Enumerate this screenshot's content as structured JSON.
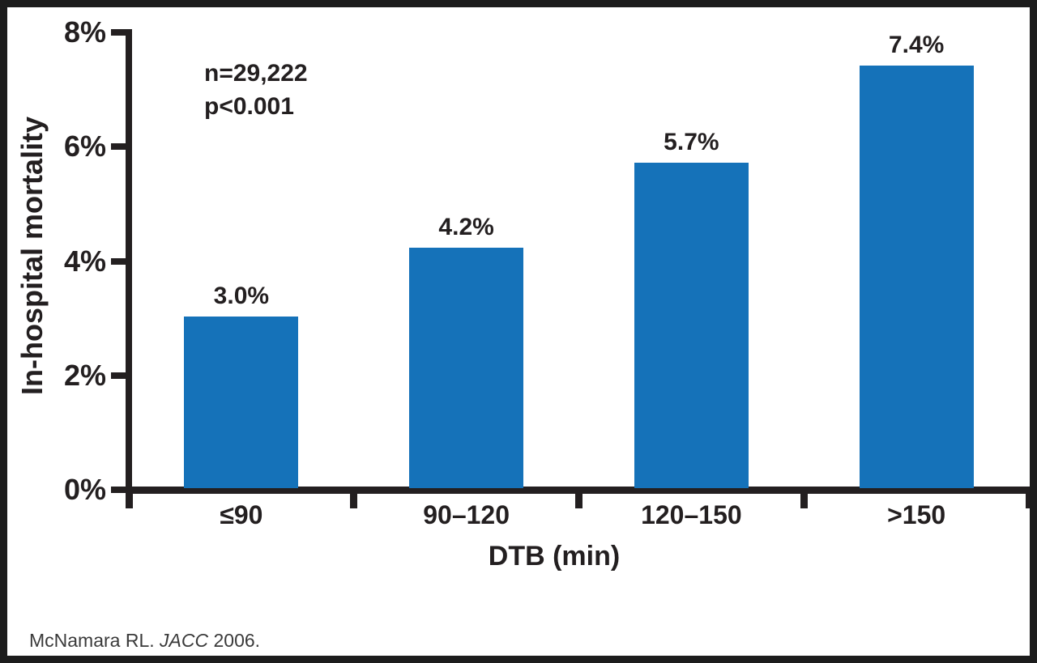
{
  "chart_data": {
    "type": "bar",
    "title": "",
    "categories": [
      "≤90",
      "90–120",
      "120–150",
      ">150"
    ],
    "values": [
      3.0,
      4.2,
      5.7,
      7.4
    ],
    "value_labels": [
      "3.0%",
      "4.2%",
      "5.7%",
      "7.4%"
    ],
    "xlabel": "DTB (min)",
    "ylabel": "In-hospital mortality",
    "y_tick_values": [
      0,
      2,
      4,
      6,
      8
    ],
    "y_tick_labels": [
      "0%",
      "2%",
      "4%",
      "6%",
      "8%"
    ],
    "ylim": [
      0,
      8
    ],
    "grid": false,
    "legend": "none",
    "bar_color": "#1572b9",
    "axis_color": "#231f20",
    "annotations": [
      "n=29,222",
      "p<0.001"
    ]
  },
  "citation": {
    "prefix": "McNamara RL. ",
    "journal_italic": "JACC",
    "suffix": " 2006."
  }
}
